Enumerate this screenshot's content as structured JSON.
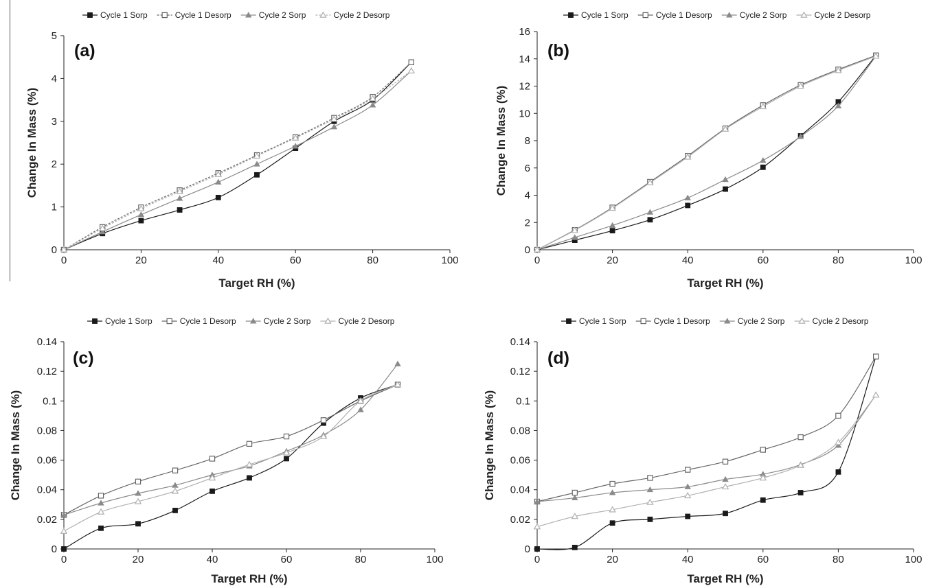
{
  "colors": {
    "cycle1_sorp": "#1a1a1a",
    "cycle1_desorp": "#666666",
    "cycle2_sorp": "#8a8a8a",
    "cycle2_desorp": "#b0b0b0",
    "axis": "#222222"
  },
  "chart_data": [
    {
      "type": "line",
      "panel_label": "(a)",
      "xlabel": "Target RH (%)",
      "ylabel": "Change In Mass (%)",
      "xlim": [
        0,
        100
      ],
      "ylim": [
        0,
        5
      ],
      "x_ticks": [
        0,
        20,
        40,
        60,
        80,
        100
      ],
      "y_ticks": [
        0,
        1,
        2,
        3,
        4,
        5
      ],
      "y_tick_labels": [
        "0",
        "1",
        "2",
        "3",
        "4",
        "5"
      ],
      "legend": "top",
      "grid": false,
      "x": [
        0,
        10,
        20,
        30,
        40,
        50,
        60,
        70,
        80,
        90
      ],
      "series": [
        {
          "name": "Cycle 1 Sorp",
          "marker": "square-filled",
          "dashed": false,
          "values": [
            0,
            0.38,
            0.68,
            0.93,
            1.22,
            1.75,
            2.37,
            3.0,
            3.5,
            4.38
          ]
        },
        {
          "name": "Cycle 1 Desorp",
          "marker": "square-open",
          "dashed": true,
          "values": [
            0,
            0.53,
            0.99,
            1.39,
            1.79,
            2.21,
            2.63,
            3.08,
            3.57,
            4.38
          ]
        },
        {
          "name": "Cycle 2 Sorp",
          "marker": "triangle-filled",
          "dashed": false,
          "values": [
            0,
            0.42,
            0.82,
            1.2,
            1.58,
            2.0,
            2.42,
            2.87,
            3.38,
            4.18
          ]
        },
        {
          "name": "Cycle 2 Desorp",
          "marker": "triangle-open",
          "dashed": true,
          "values": [
            0,
            0.5,
            0.96,
            1.36,
            1.76,
            2.19,
            2.61,
            3.05,
            3.53,
            4.18
          ]
        }
      ]
    },
    {
      "type": "line",
      "panel_label": "(b)",
      "xlabel": "Target RH (%)",
      "ylabel": "Change In Mass (%)",
      "xlim": [
        0,
        100
      ],
      "ylim": [
        0,
        16
      ],
      "x_ticks": [
        0,
        20,
        40,
        60,
        80,
        100
      ],
      "y_ticks": [
        0,
        2,
        4,
        6,
        8,
        10,
        12,
        14,
        16
      ],
      "y_tick_labels": [
        "0",
        "2",
        "4",
        "6",
        "8",
        "10",
        "12",
        "14",
        "16"
      ],
      "legend": "top",
      "grid": false,
      "x": [
        0,
        10,
        20,
        30,
        40,
        50,
        60,
        70,
        80,
        90
      ],
      "series": [
        {
          "name": "Cycle 1 Sorp",
          "marker": "square-filled",
          "dashed": false,
          "values": [
            0,
            0.7,
            1.4,
            2.2,
            3.25,
            4.45,
            6.05,
            8.35,
            10.85,
            14.25
          ]
        },
        {
          "name": "Cycle 1 Desorp",
          "marker": "square-open",
          "dashed": false,
          "values": [
            0,
            1.45,
            3.1,
            4.98,
            6.88,
            8.9,
            10.6,
            12.08,
            13.22,
            14.25
          ]
        },
        {
          "name": "Cycle 2 Sorp",
          "marker": "triangle-filled",
          "dashed": false,
          "values": [
            0,
            0.9,
            1.78,
            2.75,
            3.8,
            5.15,
            6.55,
            8.3,
            10.55,
            14.2
          ]
        },
        {
          "name": "Cycle 2 Desorp",
          "marker": "triangle-open",
          "dashed": false,
          "values": [
            0,
            1.42,
            3.05,
            4.92,
            6.8,
            8.85,
            10.5,
            12.0,
            13.15,
            14.2
          ]
        }
      ]
    },
    {
      "type": "line",
      "panel_label": "(c)",
      "xlabel": "Target RH (%)",
      "ylabel": "Change In Mass (%)",
      "xlim": [
        0,
        100
      ],
      "ylim": [
        0,
        0.14
      ],
      "x_ticks": [
        0,
        20,
        40,
        60,
        80,
        100
      ],
      "y_ticks": [
        0,
        0.02,
        0.04,
        0.06,
        0.08,
        0.1,
        0.12,
        0.14
      ],
      "y_tick_labels": [
        "0",
        "0.02",
        "0.04",
        "0.06",
        "0.08",
        "0.1",
        "0.12",
        "0.14"
      ],
      "legend": "top",
      "grid": false,
      "x": [
        0,
        10,
        20,
        30,
        40,
        50,
        60,
        70,
        80,
        90
      ],
      "series": [
        {
          "name": "Cycle 1 Sorp",
          "marker": "square-filled",
          "dashed": false,
          "values": [
            0.0,
            0.014,
            0.017,
            0.026,
            0.039,
            0.048,
            0.061,
            0.085,
            0.102,
            0.111
          ]
        },
        {
          "name": "Cycle 1 Desorp",
          "marker": "square-open",
          "dashed": false,
          "values": [
            0.023,
            0.036,
            0.0455,
            0.053,
            0.061,
            0.071,
            0.076,
            0.087,
            0.1,
            0.111
          ]
        },
        {
          "name": "Cycle 2 Sorp",
          "marker": "triangle-filled",
          "dashed": false,
          "values": [
            0.023,
            0.031,
            0.0375,
            0.043,
            0.05,
            0.056,
            0.066,
            0.077,
            0.094,
            0.125
          ]
        },
        {
          "name": "Cycle 2 Desorp",
          "marker": "triangle-open",
          "dashed": false,
          "values": [
            0.012,
            0.025,
            0.032,
            0.039,
            0.048,
            0.057,
            0.065,
            0.076,
            0.1,
            0.111
          ]
        }
      ]
    },
    {
      "type": "line",
      "panel_label": "(d)",
      "xlabel": "Target RH (%)",
      "ylabel": "Change In Mass (%)",
      "xlim": [
        0,
        100
      ],
      "ylim": [
        0,
        0.14
      ],
      "x_ticks": [
        0,
        20,
        40,
        60,
        80,
        100
      ],
      "y_ticks": [
        0,
        0.02,
        0.04,
        0.06,
        0.08,
        0.1,
        0.12,
        0.14
      ],
      "y_tick_labels": [
        "0",
        "0.02",
        "0.04",
        "0.06",
        "0.08",
        "0.1",
        "0.12",
        "0.14"
      ],
      "legend": "top",
      "grid": false,
      "x": [
        0,
        10,
        20,
        30,
        40,
        50,
        60,
        70,
        80,
        90
      ],
      "series": [
        {
          "name": "Cycle 1 Sorp",
          "marker": "square-filled",
          "dashed": false,
          "values": [
            0.0,
            0.001,
            0.0175,
            0.02,
            0.022,
            0.024,
            0.033,
            0.038,
            0.052,
            0.13
          ]
        },
        {
          "name": "Cycle 1 Desorp",
          "marker": "square-open",
          "dashed": false,
          "values": [
            0.032,
            0.038,
            0.044,
            0.048,
            0.0535,
            0.059,
            0.067,
            0.0755,
            0.09,
            0.13
          ]
        },
        {
          "name": "Cycle 2 Sorp",
          "marker": "triangle-filled",
          "dashed": false,
          "values": [
            0.032,
            0.0345,
            0.038,
            0.04,
            0.042,
            0.047,
            0.0505,
            0.057,
            0.07,
            0.104
          ]
        },
        {
          "name": "Cycle 2 Desorp",
          "marker": "triangle-open",
          "dashed": false,
          "values": [
            0.015,
            0.022,
            0.0265,
            0.0315,
            0.036,
            0.042,
            0.048,
            0.0565,
            0.072,
            0.104
          ]
        }
      ]
    }
  ]
}
